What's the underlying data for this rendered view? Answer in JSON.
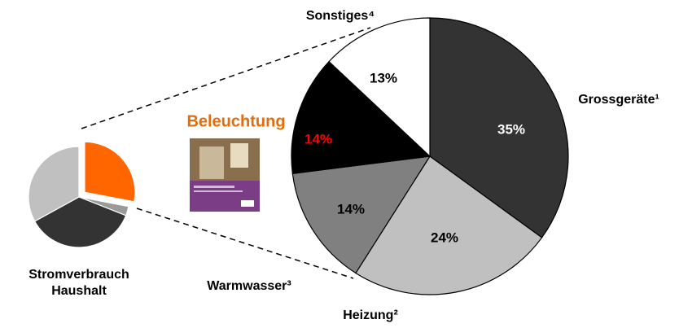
{
  "chart_data": [
    {
      "type": "pie",
      "title": [
        "Stromverbrauch",
        "Haushalt"
      ],
      "categories": [
        null,
        null,
        null,
        null
      ],
      "values": [
        28,
        3,
        36,
        33
      ],
      "colors": [
        "#ff6600",
        "#9a9a9a",
        "#333333",
        "#c0c0c0"
      ],
      "explode": [
        true,
        false,
        false,
        false
      ]
    },
    {
      "type": "pie",
      "annotation": "Beleuchtung",
      "annotation_color": "#e46c0a",
      "categories": [
        "Grossgeräte¹",
        "Heizung²",
        "Warmwasser³",
        null,
        "Sonstiges⁴"
      ],
      "values": [
        35,
        24,
        14,
        14,
        13
      ],
      "value_labels": [
        "35%",
        "24%",
        "14%",
        "14%",
        "13%"
      ],
      "colors": [
        "#333333",
        "#c0c0c0",
        "#808080",
        "#000000",
        "#ffffff"
      ],
      "label_colors": [
        "#ffffff",
        "#000000",
        "#000000",
        "#ff0000",
        "#000000"
      ]
    }
  ]
}
